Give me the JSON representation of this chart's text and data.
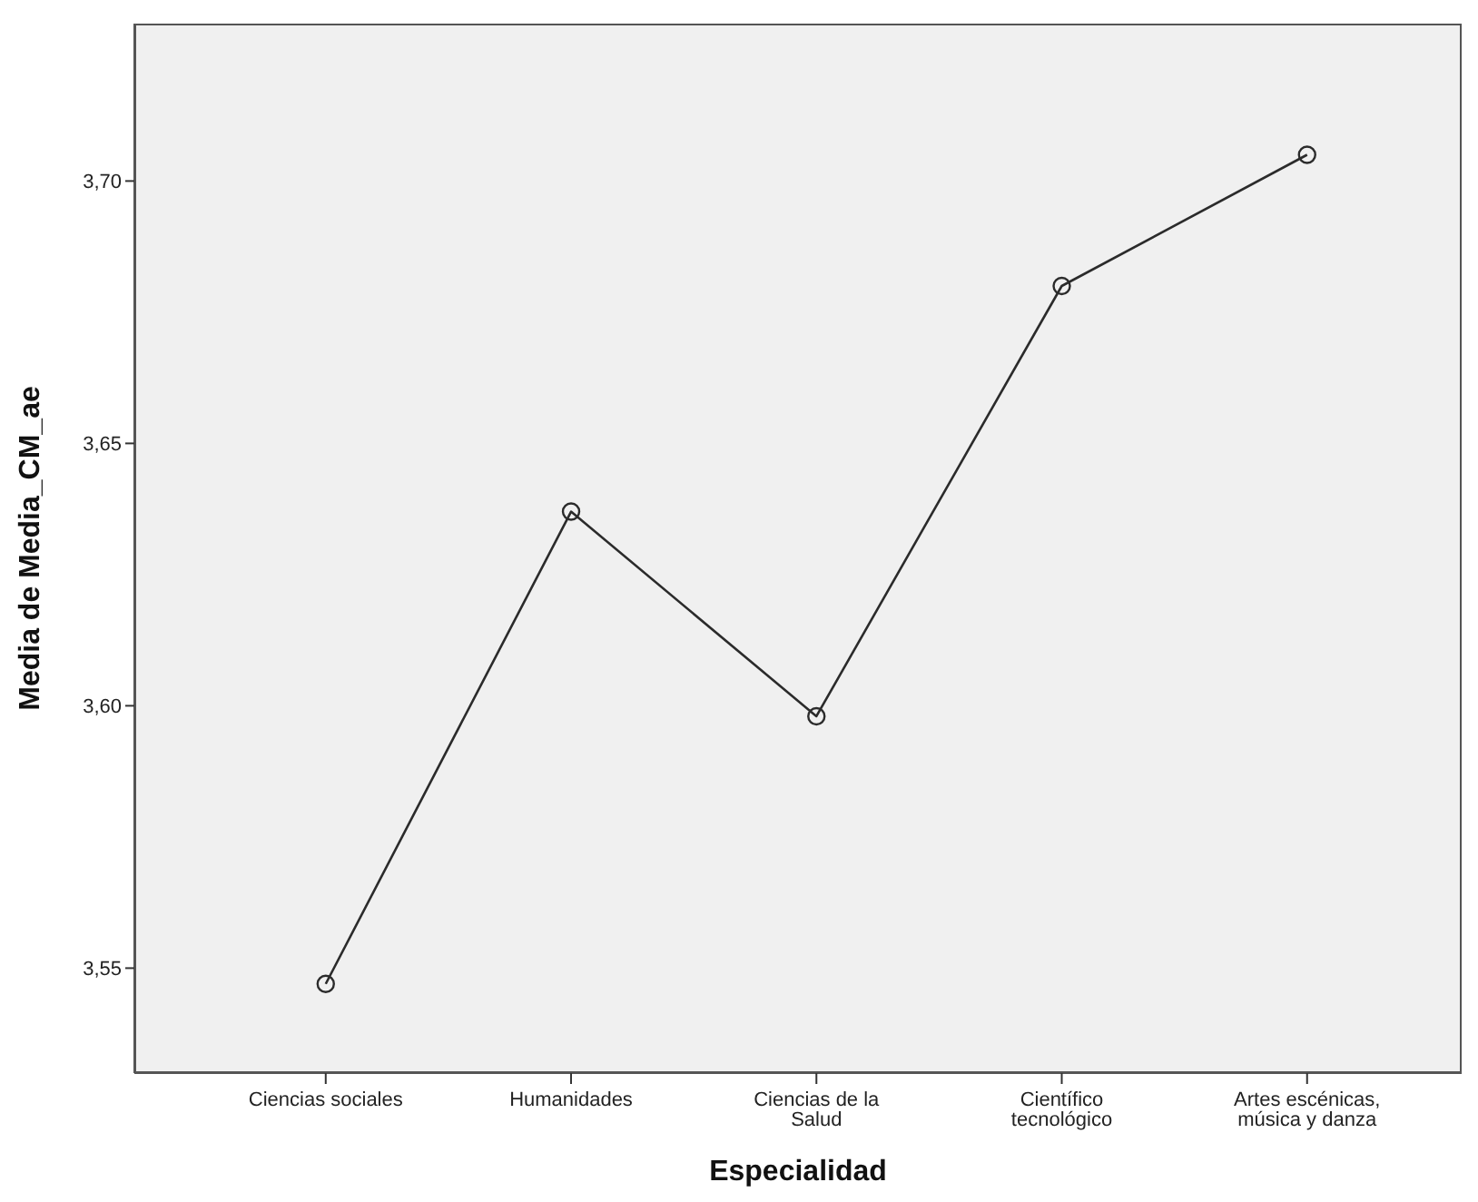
{
  "chart_data": {
    "type": "line",
    "xlabel": "Especialidad",
    "ylabel": "Media de Media_CM_ae",
    "categories": [
      "Ciencias sociales",
      "Humanidades",
      "Ciencias de la Salud",
      "Científico tecnológico",
      "Artes escénicas, música y danza"
    ],
    "series": [
      {
        "color": "#2b2b2b",
        "values": [
          3.547,
          3.637,
          3.598,
          3.68,
          3.705
        ]
      }
    ],
    "ylim": [
      3.53,
      3.73
    ],
    "yticks": [
      {
        "value": 3.55,
        "label": "3,55"
      },
      {
        "value": 3.6,
        "label": "3,60"
      },
      {
        "value": 3.65,
        "label": "3,65"
      },
      {
        "value": 3.7,
        "label": "3,70"
      }
    ],
    "marker": "circle",
    "line_style": "solid"
  }
}
